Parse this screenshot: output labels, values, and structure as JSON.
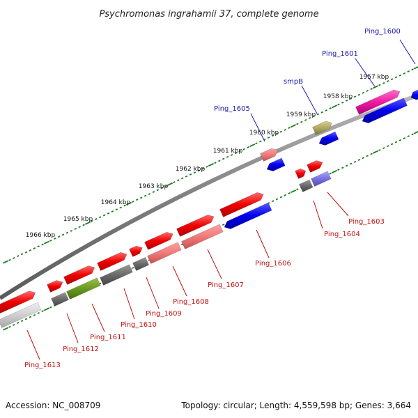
{
  "title": "Psychromonas ingrahamii 37, complete genome",
  "footer": {
    "accession": "Accession: NC_008709",
    "summary": "Topology: circular; Length: 4,559,598 bp; Genes: 3,664"
  },
  "tick_labels": [
    "1957 kbp",
    "1958 kbp",
    "1959 kbp",
    "1960 kbp",
    "1961 kbp",
    "1962 kbp",
    "1963 kbp",
    "1964 kbp",
    "1965 kbp",
    "1966 kbp"
  ],
  "gene_labels": [
    {
      "name": "Ping_1600",
      "color": "#1a1aa8"
    },
    {
      "name": "Ping_1601",
      "color": "#1a1aa8"
    },
    {
      "name": "smpB",
      "color": "#1a1aa8"
    },
    {
      "name": "Ping_1605",
      "color": "#1a1aa8"
    },
    {
      "name": "Ping_1603",
      "color": "#c01010"
    },
    {
      "name": "Ping_1604",
      "color": "#c01010"
    },
    {
      "name": "Ping_1606",
      "color": "#c01010"
    },
    {
      "name": "Ping_1607",
      "color": "#c01010"
    },
    {
      "name": "Ping_1608",
      "color": "#c01010"
    },
    {
      "name": "Ping_1609",
      "color": "#c01010"
    },
    {
      "name": "Ping_1610",
      "color": "#c01010"
    },
    {
      "name": "Ping_1611",
      "color": "#c01010"
    },
    {
      "name": "Ping_1612",
      "color": "#c01010"
    },
    {
      "name": "Ping_1613",
      "color": "#c01010"
    }
  ],
  "colors": {
    "backbone": "#8a8a8a",
    "tick": "#1e7a1e",
    "forward_cds": "#ff1a1a",
    "reverse_cds": "#1010ee"
  }
}
